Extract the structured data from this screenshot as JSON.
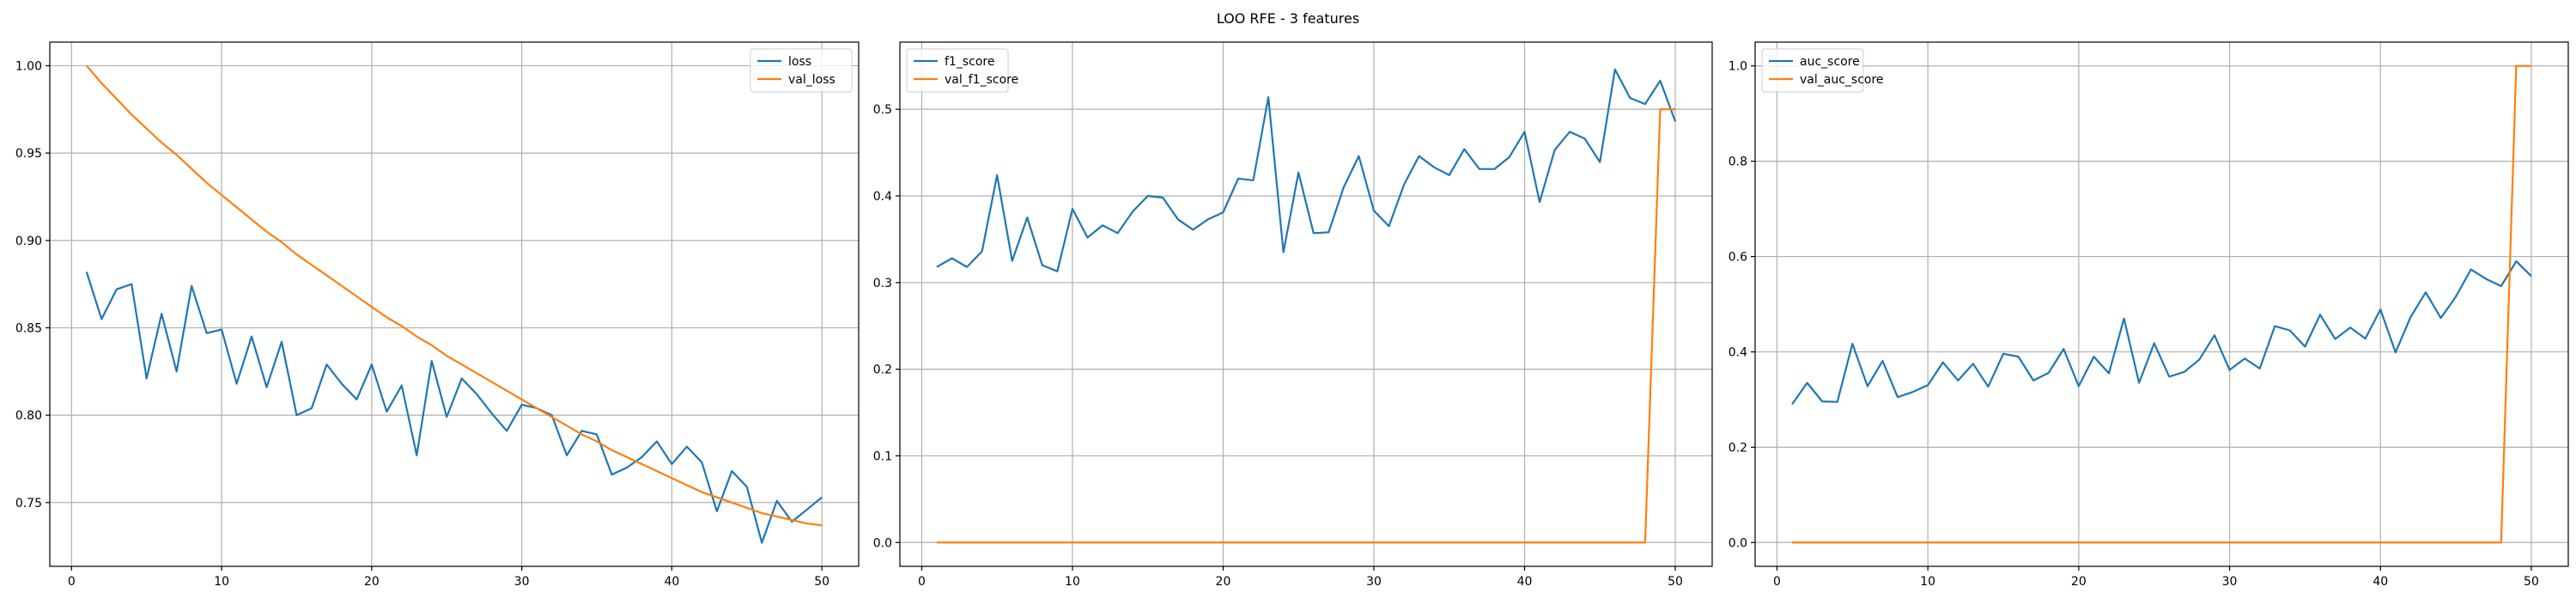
{
  "figure": {
    "title": "LOO RFE - 3 features"
  },
  "colors": {
    "series1": "#1f77b4",
    "series2": "#ff7f0e",
    "grid": "#b0b0b0",
    "axis": "#000000"
  },
  "chart_data": [
    {
      "type": "line",
      "title": "",
      "xlabel": "",
      "ylabel": "",
      "xlim": [
        -1.45,
        52.45
      ],
      "ylim": [
        0.7135,
        1.0135
      ],
      "xticks": [
        0,
        10,
        20,
        30,
        40,
        50
      ],
      "yticks": [
        0.75,
        0.8,
        0.85,
        0.9,
        0.95,
        1.0
      ],
      "ytick_labels": [
        "0.75",
        "0.80",
        "0.85",
        "0.90",
        "0.95",
        "1.00"
      ],
      "grid": true,
      "legend_position": "upper right",
      "x": [
        1,
        2,
        3,
        4,
        5,
        6,
        7,
        8,
        9,
        10,
        11,
        12,
        13,
        14,
        15,
        16,
        17,
        18,
        19,
        20,
        21,
        22,
        23,
        24,
        25,
        26,
        27,
        28,
        29,
        30,
        31,
        32,
        33,
        34,
        35,
        36,
        37,
        38,
        39,
        40,
        41,
        42,
        43,
        44,
        45,
        46,
        47,
        48,
        49,
        50
      ],
      "series": [
        {
          "name": "loss",
          "values": [
            0.882,
            0.855,
            0.872,
            0.875,
            0.821,
            0.858,
            0.825,
            0.874,
            0.847,
            0.849,
            0.818,
            0.845,
            0.816,
            0.842,
            0.8,
            0.804,
            0.829,
            0.818,
            0.809,
            0.829,
            0.802,
            0.817,
            0.777,
            0.831,
            0.799,
            0.821,
            0.812,
            0.801,
            0.791,
            0.806,
            0.804,
            0.8,
            0.777,
            0.791,
            0.789,
            0.766,
            0.77,
            0.776,
            0.785,
            0.772,
            0.782,
            0.773,
            0.745,
            0.768,
            0.759,
            0.727,
            0.751,
            0.739,
            0.746,
            0.753
          ]
        },
        {
          "name": "val_loss",
          "values": [
            1.0,
            0.99,
            0.981,
            0.972,
            0.964,
            0.956,
            0.949,
            0.941,
            0.933,
            0.926,
            0.919,
            0.912,
            0.905,
            0.899,
            0.892,
            0.886,
            0.88,
            0.874,
            0.868,
            0.862,
            0.856,
            0.851,
            0.845,
            0.84,
            0.834,
            0.829,
            0.824,
            0.819,
            0.814,
            0.809,
            0.804,
            0.799,
            0.794,
            0.789,
            0.785,
            0.78,
            0.776,
            0.772,
            0.768,
            0.764,
            0.76,
            0.756,
            0.753,
            0.75,
            0.747,
            0.744,
            0.742,
            0.74,
            0.738,
            0.737
          ]
        }
      ]
    },
    {
      "type": "line",
      "title": "",
      "xlabel": "",
      "ylabel": "",
      "xlim": [
        -1.45,
        52.45
      ],
      "ylim": [
        -0.0275,
        0.5775
      ],
      "xticks": [
        0,
        10,
        20,
        30,
        40,
        50
      ],
      "yticks": [
        0.0,
        0.1,
        0.2,
        0.3,
        0.4,
        0.5
      ],
      "ytick_labels": [
        "0.0",
        "0.1",
        "0.2",
        "0.3",
        "0.4",
        "0.5"
      ],
      "grid": true,
      "legend_position": "upper left",
      "x": [
        1,
        2,
        3,
        4,
        5,
        6,
        7,
        8,
        9,
        10,
        11,
        12,
        13,
        14,
        15,
        16,
        17,
        18,
        19,
        20,
        21,
        22,
        23,
        24,
        25,
        26,
        27,
        28,
        29,
        30,
        31,
        32,
        33,
        34,
        35,
        36,
        37,
        38,
        39,
        40,
        41,
        42,
        43,
        44,
        45,
        46,
        47,
        48,
        49,
        50
      ],
      "series": [
        {
          "name": "f1_score",
          "values": [
            0.318,
            0.328,
            0.318,
            0.336,
            0.424,
            0.325,
            0.375,
            0.32,
            0.313,
            0.385,
            0.352,
            0.366,
            0.357,
            0.382,
            0.4,
            0.398,
            0.373,
            0.361,
            0.373,
            0.381,
            0.42,
            0.418,
            0.514,
            0.335,
            0.427,
            0.357,
            0.358,
            0.41,
            0.446,
            0.383,
            0.365,
            0.413,
            0.446,
            0.433,
            0.424,
            0.454,
            0.431,
            0.431,
            0.445,
            0.474,
            0.393,
            0.453,
            0.474,
            0.466,
            0.439,
            0.546,
            0.513,
            0.506,
            0.533,
            0.486
          ]
        },
        {
          "name": "val_f1_score",
          "values": [
            0,
            0,
            0,
            0,
            0,
            0,
            0,
            0,
            0,
            0,
            0,
            0,
            0,
            0,
            0,
            0,
            0,
            0,
            0,
            0,
            0,
            0,
            0,
            0,
            0,
            0,
            0,
            0,
            0,
            0,
            0,
            0,
            0,
            0,
            0,
            0,
            0,
            0,
            0,
            0,
            0,
            0,
            0,
            0,
            0,
            0,
            0,
            0,
            0.5,
            0.5
          ]
        }
      ]
    },
    {
      "type": "line",
      "title": "",
      "xlabel": "",
      "ylabel": "",
      "xlim": [
        -1.45,
        52.45
      ],
      "ylim": [
        -0.05,
        1.05
      ],
      "xticks": [
        0,
        10,
        20,
        30,
        40,
        50
      ],
      "yticks": [
        0.0,
        0.2,
        0.4,
        0.6,
        0.8,
        1.0
      ],
      "ytick_labels": [
        "0.0",
        "0.2",
        "0.4",
        "0.6",
        "0.8",
        "1.0"
      ],
      "grid": true,
      "legend_position": "upper left",
      "x": [
        1,
        2,
        3,
        4,
        5,
        6,
        7,
        8,
        9,
        10,
        11,
        12,
        13,
        14,
        15,
        16,
        17,
        18,
        19,
        20,
        21,
        22,
        23,
        24,
        25,
        26,
        27,
        28,
        29,
        30,
        31,
        32,
        33,
        34,
        35,
        36,
        37,
        38,
        39,
        40,
        41,
        42,
        43,
        44,
        45,
        46,
        47,
        48,
        49,
        50
      ],
      "series": [
        {
          "name": "auc_score",
          "values": [
            0.29,
            0.335,
            0.296,
            0.295,
            0.417,
            0.328,
            0.381,
            0.305,
            0.316,
            0.33,
            0.378,
            0.34,
            0.375,
            0.327,
            0.396,
            0.39,
            0.34,
            0.356,
            0.406,
            0.328,
            0.39,
            0.355,
            0.47,
            0.335,
            0.418,
            0.348,
            0.358,
            0.384,
            0.435,
            0.362,
            0.386,
            0.365,
            0.454,
            0.445,
            0.411,
            0.478,
            0.427,
            0.451,
            0.428,
            0.489,
            0.399,
            0.473,
            0.525,
            0.471,
            0.516,
            0.573,
            0.553,
            0.538,
            0.59,
            0.559
          ]
        },
        {
          "name": "val_auc_score",
          "values": [
            0,
            0,
            0,
            0,
            0,
            0,
            0,
            0,
            0,
            0,
            0,
            0,
            0,
            0,
            0,
            0,
            0,
            0,
            0,
            0,
            0,
            0,
            0,
            0,
            0,
            0,
            0,
            0,
            0,
            0,
            0,
            0,
            0,
            0,
            0,
            0,
            0,
            0,
            0,
            0,
            0,
            0,
            0,
            0,
            0,
            0,
            0,
            0,
            1.0,
            1.0
          ]
        }
      ]
    }
  ]
}
